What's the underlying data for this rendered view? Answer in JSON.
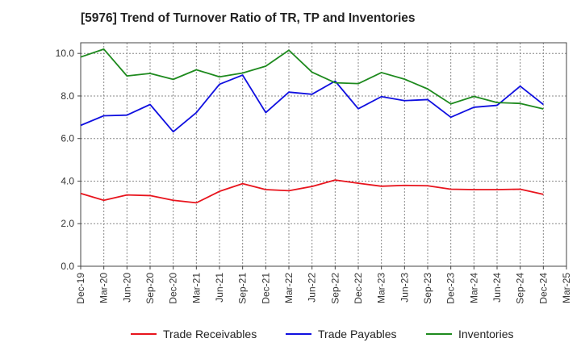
{
  "chart_data": {
    "type": "line",
    "title": "[5976]  Trend of Turnover Ratio of TR, TP and Inventories",
    "xlabel": "",
    "ylabel": "",
    "x": [
      "Dec-19",
      "Mar-20",
      "Jun-20",
      "Sep-20",
      "Dec-20",
      "Mar-21",
      "Jun-21",
      "Sep-21",
      "Dec-21",
      "Mar-22",
      "Jun-22",
      "Sep-22",
      "Dec-22",
      "Mar-23",
      "Jun-23",
      "Sep-23",
      "Dec-23",
      "Mar-24",
      "Jun-24",
      "Sep-24",
      "Dec-24",
      "Mar-25"
    ],
    "ylim": [
      0,
      10.5
    ],
    "yticks": [
      0.0,
      2.0,
      4.0,
      6.0,
      8.0,
      10.0
    ],
    "ytick_labels": [
      "0.0",
      "2.0",
      "4.0",
      "6.0",
      "8.0",
      "10.0"
    ],
    "grid": true,
    "legend_position": "bottom",
    "series": [
      {
        "name": "Trade Receivables",
        "color": "#e8141d",
        "values": [
          3.42,
          3.1,
          3.35,
          3.32,
          3.1,
          2.98,
          3.52,
          3.88,
          3.6,
          3.55,
          3.75,
          4.05,
          3.9,
          3.76,
          3.8,
          3.78,
          3.62,
          3.6,
          3.6,
          3.62,
          3.38,
          null
        ]
      },
      {
        "name": "Trade Payables",
        "color": "#1010e0",
        "values": [
          6.62,
          7.07,
          7.1,
          7.6,
          6.32,
          7.22,
          8.55,
          8.98,
          7.22,
          8.18,
          8.08,
          8.7,
          7.4,
          7.97,
          7.78,
          7.83,
          7.0,
          7.47,
          7.56,
          8.46,
          7.6,
          null
        ]
      },
      {
        "name": "Inventories",
        "color": "#1e8a1e",
        "values": [
          9.83,
          10.2,
          8.94,
          9.06,
          8.78,
          9.23,
          8.9,
          9.08,
          9.4,
          10.15,
          9.12,
          8.62,
          8.58,
          9.1,
          8.79,
          8.33,
          7.63,
          7.98,
          7.69,
          7.65,
          7.39,
          null
        ]
      }
    ]
  }
}
